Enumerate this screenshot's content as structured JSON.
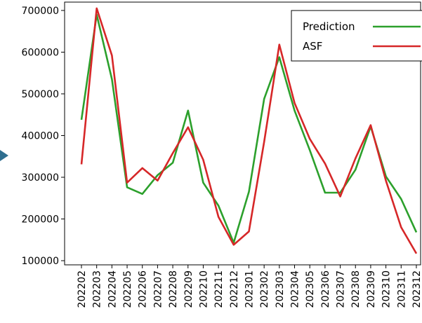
{
  "chart_data": {
    "type": "line",
    "title": "",
    "xlabel": "",
    "ylabel": "",
    "categories": [
      "202202",
      "202203",
      "202204",
      "202205",
      "202206",
      "202207",
      "202208",
      "202209",
      "202210",
      "202211",
      "202212",
      "202301",
      "202302",
      "202303",
      "202304",
      "202305",
      "202306",
      "202307",
      "202308",
      "202309",
      "202310",
      "202311",
      "202312"
    ],
    "series": [
      {
        "name": "Prediction",
        "color": "#2ca02c",
        "values": [
          438000,
          690000,
          535000,
          276000,
          260000,
          305000,
          335000,
          460000,
          287000,
          232000,
          143000,
          265000,
          488000,
          588000,
          460000,
          365000,
          263000,
          263000,
          318000,
          422000,
          302000,
          248000,
          168000
        ]
      },
      {
        "name": "ASF",
        "color": "#d62728",
        "values": [
          331000,
          705000,
          592000,
          287000,
          322000,
          292000,
          358000,
          420000,
          342000,
          205000,
          138000,
          170000,
          385000,
          618000,
          478000,
          392000,
          333000,
          254000,
          345000,
          425000,
          292000,
          180000,
          117000
        ]
      }
    ],
    "ylim": [
      90000,
      720000
    ],
    "yticks": [
      100000,
      200000,
      300000,
      400000,
      500000,
      600000,
      700000
    ],
    "ytick_labels": [
      "100000",
      "200000",
      "300000",
      "400000",
      "500000",
      "600000",
      "700000"
    ],
    "grid": false,
    "legend": "top-right"
  },
  "decor": {
    "arrow_color": "#2f6e8f",
    "arrow_icon": "arrow-right-icon"
  }
}
